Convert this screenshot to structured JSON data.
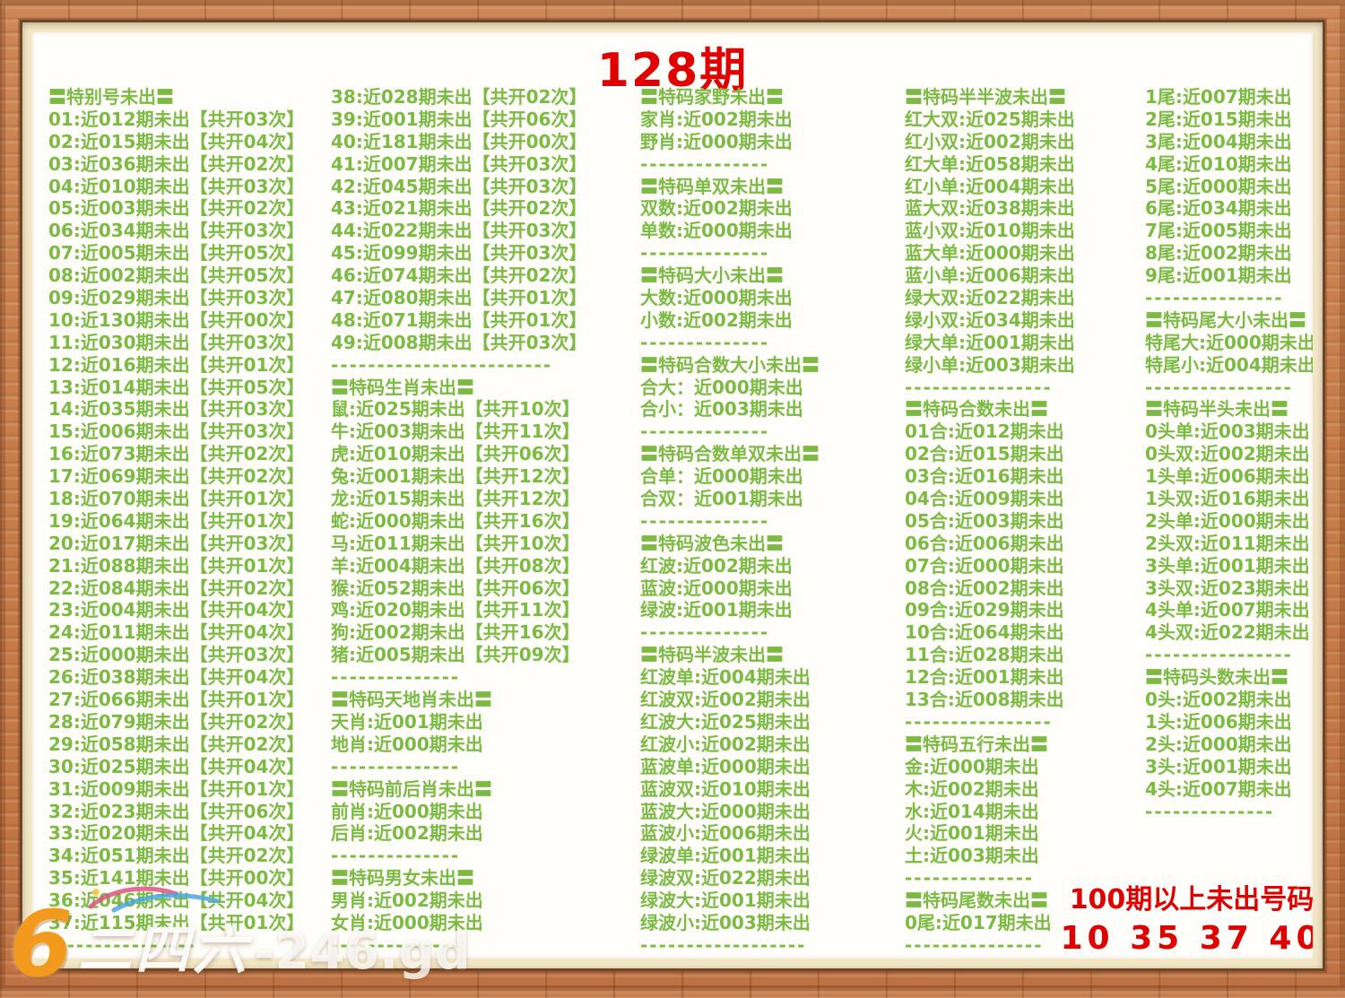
{
  "title": "128期",
  "colors": {
    "green": "#7bbb42",
    "red": "#e00000",
    "orange": "#f29a1e",
    "wood": "#c67f4e",
    "mat": "#f3e7c6",
    "paper": "#fffefa"
  },
  "columns": [
    {
      "lines": [
        {
          "t": "h",
          "s": "〓特别号未出〓"
        },
        {
          "t": "e",
          "s": "01:近012期未出【共开03次】"
        },
        {
          "t": "e",
          "s": "02:近015期未出【共开04次】"
        },
        {
          "t": "e",
          "s": "03:近036期未出【共开02次】"
        },
        {
          "t": "e",
          "s": "04:近010期未出【共开03次】"
        },
        {
          "t": "e",
          "s": "05:近003期未出【共开02次】"
        },
        {
          "t": "e",
          "s": "06:近034期未出【共开03次】"
        },
        {
          "t": "e",
          "s": "07:近005期未出【共开05次】"
        },
        {
          "t": "e",
          "s": "08:近002期未出【共开05次】"
        },
        {
          "t": "e",
          "s": "09:近029期未出【共开03次】"
        },
        {
          "t": "e",
          "s": "10:近130期未出【共开00次】"
        },
        {
          "t": "e",
          "s": "11:近030期未出【共开03次】"
        },
        {
          "t": "e",
          "s": "12:近016期未出【共开01次】"
        },
        {
          "t": "e",
          "s": "13:近014期未出【共开05次】"
        },
        {
          "t": "e",
          "s": "14:近035期未出【共开03次】"
        },
        {
          "t": "e",
          "s": "15:近006期未出【共开03次】"
        },
        {
          "t": "e",
          "s": "16:近073期未出【共开02次】"
        },
        {
          "t": "e",
          "s": "17:近069期未出【共开02次】"
        },
        {
          "t": "e",
          "s": "18:近070期未出【共开01次】"
        },
        {
          "t": "e",
          "s": "19:近064期未出【共开01次】"
        },
        {
          "t": "e",
          "s": "20:近017期未出【共开03次】"
        },
        {
          "t": "e",
          "s": "21:近088期未出【共开01次】"
        },
        {
          "t": "e",
          "s": "22:近084期未出【共开02次】"
        },
        {
          "t": "e",
          "s": "23:近004期未出【共开04次】"
        },
        {
          "t": "e",
          "s": "24:近011期未出【共开04次】"
        },
        {
          "t": "e",
          "s": "25:近000期未出【共开03次】"
        },
        {
          "t": "e",
          "s": "26:近038期未出【共开04次】"
        },
        {
          "t": "e",
          "s": "27:近066期未出【共开01次】"
        },
        {
          "t": "e",
          "s": "28:近079期未出【共开02次】"
        },
        {
          "t": "e",
          "s": "29:近058期未出【共开02次】"
        },
        {
          "t": "e",
          "s": "30:近025期未出【共开04次】"
        },
        {
          "t": "e",
          "s": "31:近009期未出【共开01次】"
        },
        {
          "t": "e",
          "s": "32:近023期未出【共开06次】"
        },
        {
          "t": "e",
          "s": "33:近020期未出【共开04次】"
        },
        {
          "t": "e",
          "s": "34:近051期未出【共开02次】"
        },
        {
          "t": "e",
          "s": "35:近141期未出【共开00次】"
        },
        {
          "t": "e",
          "s": "36:近046期未出【共开04次】"
        },
        {
          "t": "e",
          "s": "37:近115期未出【共开01次】"
        },
        {
          "t": "d",
          "s": "----------------"
        }
      ]
    },
    {
      "lines": [
        {
          "t": "e",
          "s": "38:近028期未出【共开02次】"
        },
        {
          "t": "e",
          "s": "39:近001期未出【共开06次】"
        },
        {
          "t": "e",
          "s": "40:近181期未出【共开00次】"
        },
        {
          "t": "e",
          "s": "41:近007期未出【共开03次】"
        },
        {
          "t": "e",
          "s": "42:近045期未出【共开03次】"
        },
        {
          "t": "e",
          "s": "43:近021期未出【共开02次】"
        },
        {
          "t": "e",
          "s": "44:近022期未出【共开03次】"
        },
        {
          "t": "e",
          "s": "45:近099期未出【共开03次】"
        },
        {
          "t": "e",
          "s": "46:近074期未出【共开02次】"
        },
        {
          "t": "e",
          "s": "47:近080期未出【共开01次】"
        },
        {
          "t": "e",
          "s": "48:近071期未出【共开01次】"
        },
        {
          "t": "e",
          "s": "49:近008期未出【共开03次】"
        },
        {
          "t": "d",
          "s": "------------------------"
        },
        {
          "t": "h",
          "s": "〓特码生肖未出〓"
        },
        {
          "t": "e",
          "s": "鼠:近025期未出【共开10次】"
        },
        {
          "t": "e",
          "s": "牛:近003期未出【共开11次】"
        },
        {
          "t": "e",
          "s": "虎:近010期未出【共开06次】"
        },
        {
          "t": "e",
          "s": "兔:近001期未出【共开12次】"
        },
        {
          "t": "e",
          "s": "龙:近015期未出【共开12次】"
        },
        {
          "t": "e",
          "s": "蛇:近000期未出【共开16次】"
        },
        {
          "t": "e",
          "s": "马:近011期未出【共开10次】"
        },
        {
          "t": "e",
          "s": "羊:近004期未出【共开08次】"
        },
        {
          "t": "e",
          "s": "猴:近052期未出【共开06次】"
        },
        {
          "t": "e",
          "s": "鸡:近020期未出【共开11次】"
        },
        {
          "t": "e",
          "s": "狗:近002期未出【共开16次】"
        },
        {
          "t": "e",
          "s": "猪:近005期未出【共开09次】"
        },
        {
          "t": "d",
          "s": "--------------"
        },
        {
          "t": "h",
          "s": "〓特码天地肖未出〓"
        },
        {
          "t": "e",
          "s": "天肖:近001期未出"
        },
        {
          "t": "e",
          "s": "地肖:近000期未出"
        },
        {
          "t": "d",
          "s": "--------------"
        },
        {
          "t": "h",
          "s": "〓特码前后肖未出〓"
        },
        {
          "t": "e",
          "s": "前肖:近000期未出"
        },
        {
          "t": "e",
          "s": "后肖:近002期未出"
        },
        {
          "t": "d",
          "s": "--------------"
        },
        {
          "t": "h",
          "s": "〓特码男女未出〓"
        },
        {
          "t": "e",
          "s": "男肖:近002期未出"
        },
        {
          "t": "e",
          "s": "女肖:近000期未出"
        },
        {
          "t": "d",
          "s": "--------------"
        }
      ]
    },
    {
      "lines": [
        {
          "t": "h",
          "s": "〓特码家野未出〓"
        },
        {
          "t": "e",
          "s": "家肖:近002期未出"
        },
        {
          "t": "e",
          "s": "野肖:近000期未出"
        },
        {
          "t": "d",
          "s": "--------------"
        },
        {
          "t": "h",
          "s": "〓特码单双未出〓"
        },
        {
          "t": "e",
          "s": "双数:近002期未出"
        },
        {
          "t": "e",
          "s": "单数:近000期未出"
        },
        {
          "t": "d",
          "s": "--------------"
        },
        {
          "t": "h",
          "s": "〓特码大小未出〓"
        },
        {
          "t": "e",
          "s": "大数:近000期未出"
        },
        {
          "t": "e",
          "s": "小数:近002期未出"
        },
        {
          "t": "d",
          "s": "--------------"
        },
        {
          "t": "h",
          "s": "〓特码合数大小未出〓"
        },
        {
          "t": "e",
          "s": "合大：近000期未出"
        },
        {
          "t": "e",
          "s": "合小：近003期未出"
        },
        {
          "t": "d",
          "s": "--------------"
        },
        {
          "t": "h",
          "s": "〓特码合数单双未出〓"
        },
        {
          "t": "e",
          "s": "合单：近000期未出"
        },
        {
          "t": "e",
          "s": "合双：近001期未出"
        },
        {
          "t": "d",
          "s": "--------------"
        },
        {
          "t": "h",
          "s": "〓特码波色未出〓"
        },
        {
          "t": "e",
          "s": "红波:近002期未出"
        },
        {
          "t": "e",
          "s": "蓝波:近000期未出"
        },
        {
          "t": "e",
          "s": "绿波:近001期未出"
        },
        {
          "t": "d",
          "s": "--------------"
        },
        {
          "t": "h",
          "s": "〓特码半波未出〓"
        },
        {
          "t": "e",
          "s": "红波单:近004期未出"
        },
        {
          "t": "e",
          "s": "红波双:近002期未出"
        },
        {
          "t": "e",
          "s": "红波大:近025期未出"
        },
        {
          "t": "e",
          "s": "红波小:近002期未出"
        },
        {
          "t": "e",
          "s": "蓝波单:近000期未出"
        },
        {
          "t": "e",
          "s": "蓝波双:近010期未出"
        },
        {
          "t": "e",
          "s": "蓝波大:近000期未出"
        },
        {
          "t": "e",
          "s": "蓝波小:近006期未出"
        },
        {
          "t": "e",
          "s": "绿波单:近001期未出"
        },
        {
          "t": "e",
          "s": "绿波双:近022期未出"
        },
        {
          "t": "e",
          "s": "绿波大:近001期未出"
        },
        {
          "t": "e",
          "s": "绿波小:近003期未出"
        },
        {
          "t": "d",
          "s": "------------------"
        }
      ]
    },
    {
      "lines": [
        {
          "t": "h",
          "s": "〓特码半半波未出〓"
        },
        {
          "t": "e",
          "s": "红大双:近025期未出"
        },
        {
          "t": "e",
          "s": "红小双:近002期未出"
        },
        {
          "t": "e",
          "s": "红大单:近058期未出"
        },
        {
          "t": "e",
          "s": "红小单:近004期未出"
        },
        {
          "t": "e",
          "s": "蓝大双:近038期未出"
        },
        {
          "t": "e",
          "s": "蓝小双:近010期未出"
        },
        {
          "t": "e",
          "s": "蓝大单:近000期未出"
        },
        {
          "t": "e",
          "s": "蓝小单:近006期未出"
        },
        {
          "t": "e",
          "s": "绿大双:近022期未出"
        },
        {
          "t": "e",
          "s": "绿小双:近034期未出"
        },
        {
          "t": "e",
          "s": "绿大单:近001期未出"
        },
        {
          "t": "e",
          "s": "绿小单:近003期未出"
        },
        {
          "t": "d",
          "s": "----------------"
        },
        {
          "t": "h",
          "s": "〓特码合数未出〓"
        },
        {
          "t": "e",
          "s": "01合:近012期未出"
        },
        {
          "t": "e",
          "s": "02合:近015期未出"
        },
        {
          "t": "e",
          "s": "03合:近016期未出"
        },
        {
          "t": "e",
          "s": "04合:近009期未出"
        },
        {
          "t": "e",
          "s": "05合:近003期未出"
        },
        {
          "t": "e",
          "s": "06合:近006期未出"
        },
        {
          "t": "e",
          "s": "07合:近000期未出"
        },
        {
          "t": "e",
          "s": "08合:近002期未出"
        },
        {
          "t": "e",
          "s": "09合:近029期未出"
        },
        {
          "t": "e",
          "s": "10合:近064期未出"
        },
        {
          "t": "e",
          "s": "11合:近028期未出"
        },
        {
          "t": "e",
          "s": "12合:近001期未出"
        },
        {
          "t": "e",
          "s": "13合:近008期未出"
        },
        {
          "t": "d",
          "s": "----------------"
        },
        {
          "t": "h",
          "s": "〓特码五行未出〓"
        },
        {
          "t": "e",
          "s": "金:近000期未出"
        },
        {
          "t": "e",
          "s": "木:近002期未出"
        },
        {
          "t": "e",
          "s": "水:近014期未出"
        },
        {
          "t": "e",
          "s": "火:近001期未出"
        },
        {
          "t": "e",
          "s": "土:近003期未出"
        },
        {
          "t": "d",
          "s": "--------------"
        },
        {
          "t": "h",
          "s": "〓特码尾数未出〓"
        },
        {
          "t": "e",
          "s": "0尾:近017期未出"
        },
        {
          "t": "d",
          "s": "---------------"
        }
      ]
    },
    {
      "lines": [
        {
          "t": "e",
          "s": "1尾:近007期未出"
        },
        {
          "t": "e",
          "s": "2尾:近015期未出"
        },
        {
          "t": "e",
          "s": "3尾:近004期未出"
        },
        {
          "t": "e",
          "s": "4尾:近010期未出"
        },
        {
          "t": "e",
          "s": "5尾:近000期未出"
        },
        {
          "t": "e",
          "s": "6尾:近034期未出"
        },
        {
          "t": "e",
          "s": "7尾:近005期未出"
        },
        {
          "t": "e",
          "s": "8尾:近002期未出"
        },
        {
          "t": "e",
          "s": "9尾:近001期未出"
        },
        {
          "t": "d",
          "s": "---------------"
        },
        {
          "t": "h",
          "s": "〓特码尾大小未出〓"
        },
        {
          "t": "e",
          "s": "特尾大:近000期未出"
        },
        {
          "t": "e",
          "s": "特尾小:近004期未出"
        },
        {
          "t": "d",
          "s": "----------------"
        },
        {
          "t": "h",
          "s": "〓特码半头未出〓"
        },
        {
          "t": "e",
          "s": "0头单:近003期未出"
        },
        {
          "t": "e",
          "s": "0头双:近002期未出"
        },
        {
          "t": "e",
          "s": "1头单:近006期未出"
        },
        {
          "t": "e",
          "s": "1头双:近016期未出"
        },
        {
          "t": "e",
          "s": "2头单:近000期未出"
        },
        {
          "t": "e",
          "s": "2头双:近011期未出"
        },
        {
          "t": "e",
          "s": "3头单:近001期未出"
        },
        {
          "t": "e",
          "s": "3头双:近023期未出"
        },
        {
          "t": "e",
          "s": "4头单:近007期未出"
        },
        {
          "t": "e",
          "s": "4头双:近022期未出"
        },
        {
          "t": "d",
          "s": "----------------"
        },
        {
          "t": "h",
          "s": "〓特码头数未出〓"
        },
        {
          "t": "e",
          "s": "0头:近002期未出"
        },
        {
          "t": "e",
          "s": "1头:近006期未出"
        },
        {
          "t": "e",
          "s": "2头:近000期未出"
        },
        {
          "t": "e",
          "s": "3头:近001期未出"
        },
        {
          "t": "e",
          "s": "4头:近007期未出"
        },
        {
          "t": "d",
          "s": "--------------"
        }
      ]
    }
  ],
  "footer_note": {
    "line1": "100期以上未出号码",
    "line2": "10 35 37 40"
  },
  "logo": {
    "badge": "6",
    "brand": "二四六",
    "suffix": "-246.gd"
  }
}
